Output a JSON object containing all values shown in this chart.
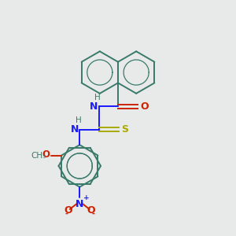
{
  "bg_color": "#e8eaea",
  "bond_color": "#3a7a6a",
  "n_color": "#1a1aff",
  "o_color": "#cc2200",
  "s_color": "#aaaa00",
  "figsize": [
    3.0,
    3.0
  ],
  "dpi": 100,
  "xlim": [
    0,
    10
  ],
  "ylim": [
    0,
    10
  ]
}
